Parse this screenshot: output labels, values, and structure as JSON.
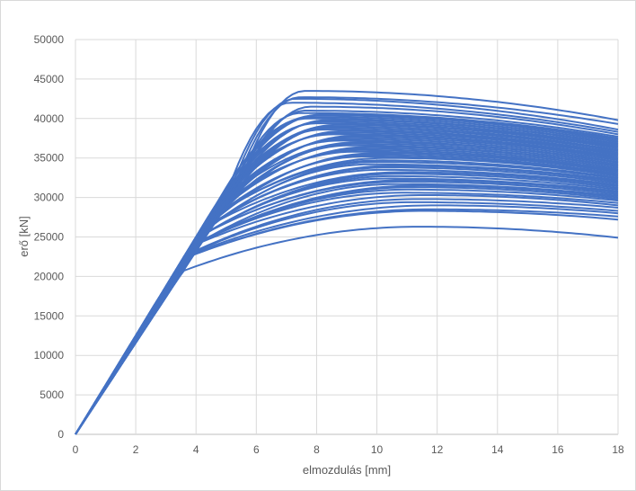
{
  "chart_data": {
    "type": "line",
    "title": "",
    "xlabel": "elmozdulás [mm]",
    "ylabel": "erő [kN]",
    "xlim": [
      0,
      18
    ],
    "ylim": [
      0,
      50000
    ],
    "x_ticks": [
      "0",
      "2",
      "4",
      "6",
      "8",
      "10",
      "12",
      "14",
      "16",
      "18"
    ],
    "y_ticks": [
      "0",
      "5000",
      "10000",
      "15000",
      "20000",
      "25000",
      "30000",
      "35000",
      "40000",
      "45000",
      "50000"
    ],
    "grid": true,
    "legend": "none",
    "series_color": "#4472c4",
    "series_count": 60,
    "series_note": "Approximate family of curves: peak force (kN) per curve; each rises nearly linearly from the origin, peaks around 7-13 mm, then declines slightly to 18 mm.",
    "peaks": [
      26300,
      28300,
      28500,
      29000,
      29400,
      29800,
      30300,
      30600,
      31000,
      31300,
      31500,
      31700,
      32000,
      32200,
      32400,
      32700,
      33000,
      33200,
      33500,
      33800,
      34000,
      34200,
      34500,
      34700,
      35000,
      35200,
      35400,
      35600,
      35800,
      36000,
      36200,
      36400,
      36600,
      36800,
      37000,
      37200,
      37400,
      37600,
      37800,
      38000,
      38200,
      38400,
      38600,
      38800,
      39000,
      39200,
      39400,
      39600,
      39800,
      40000,
      40200,
      40400,
      40500,
      40700,
      41000,
      41500,
      42000,
      42500,
      42700,
      43500
    ],
    "end_values": [
      24900,
      27200,
      27600,
      28000,
      28300,
      28700,
      29000,
      29300,
      29600,
      29800,
      30000,
      30200,
      30400,
      30600,
      30800,
      31000,
      31200,
      31400,
      31600,
      31800,
      32000,
      32200,
      32400,
      32500,
      32700,
      32900,
      33000,
      33200,
      33400,
      33500,
      33700,
      33900,
      34000,
      34200,
      34400,
      34500,
      34700,
      34900,
      35000,
      35200,
      35400,
      35500,
      35700,
      35900,
      36000,
      36200,
      36400,
      36500,
      36700,
      36800,
      37000,
      37200,
      37400,
      37500,
      37700,
      38000,
      38300,
      38600,
      39300,
      39800
    ]
  }
}
